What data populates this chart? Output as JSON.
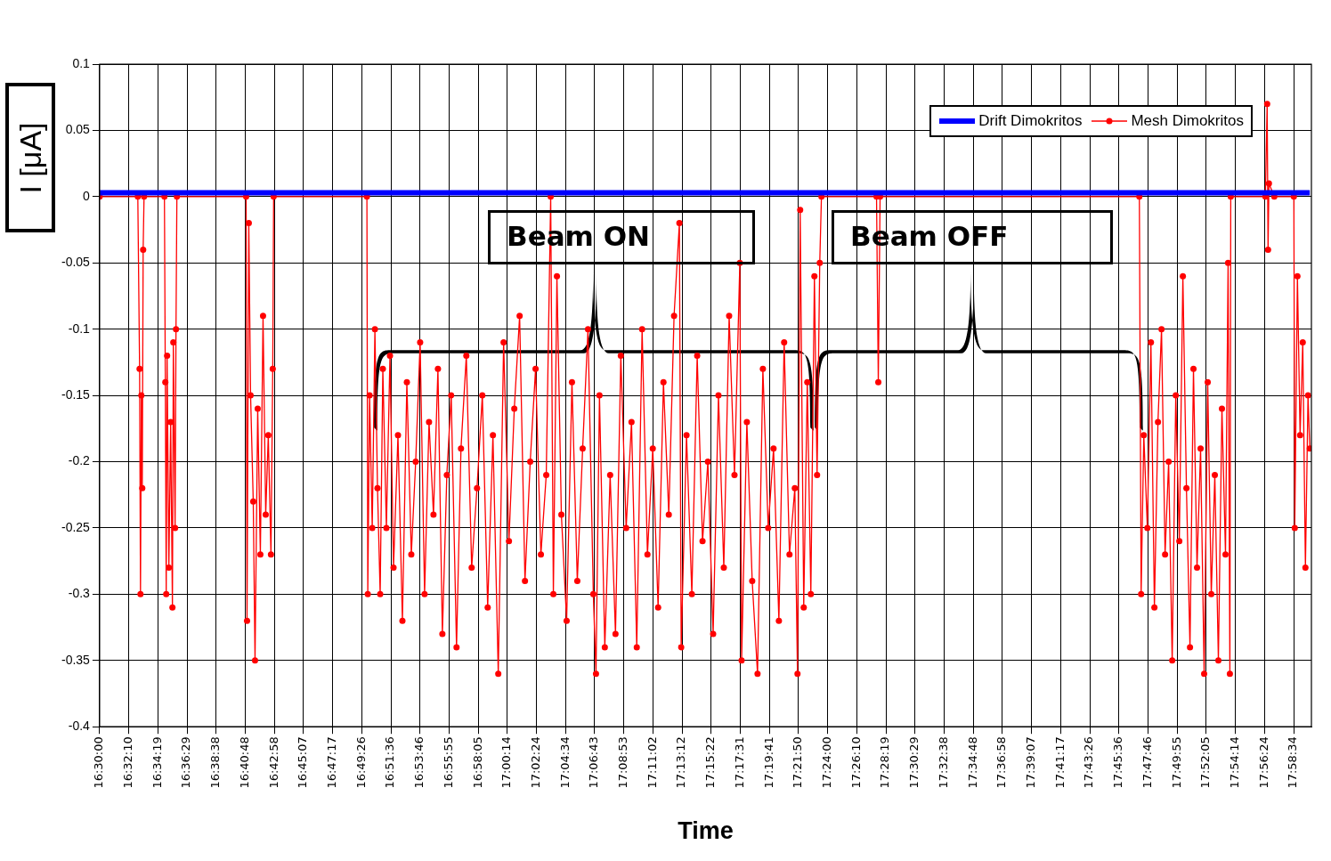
{
  "chart_data": {
    "type": "line",
    "xlabel": "Time",
    "ylabel": "I [μA]",
    "xlim": [
      16.5,
      17.998
    ],
    "ylim": [
      -0.4,
      0.1
    ],
    "yticks": [
      0.1,
      0.05,
      0,
      -0.05,
      -0.1,
      -0.15,
      -0.2,
      -0.25,
      -0.3,
      -0.35,
      -0.4
    ],
    "xticks": [
      {
        "value": 16.5,
        "label": "16:30:00"
      },
      {
        "value": 16.536,
        "label": "16:32:10"
      },
      {
        "value": 16.572,
        "label": "16:34:19"
      },
      {
        "value": 16.608,
        "label": "16:36:29"
      },
      {
        "value": 16.644,
        "label": "16:38:38"
      },
      {
        "value": 16.68,
        "label": "16:40:48"
      },
      {
        "value": 16.716,
        "label": "16:42:58"
      },
      {
        "value": 16.752,
        "label": "16:45:07"
      },
      {
        "value": 16.788,
        "label": "16:47:17"
      },
      {
        "value": 16.824,
        "label": "16:49:26"
      },
      {
        "value": 16.86,
        "label": "16:51:36"
      },
      {
        "value": 16.896,
        "label": "16:53:46"
      },
      {
        "value": 16.932,
        "label": "16:55:55"
      },
      {
        "value": 16.968,
        "label": "16:58:05"
      },
      {
        "value": 17.004,
        "label": "17:00:14"
      },
      {
        "value": 17.04,
        "label": "17:02:24"
      },
      {
        "value": 17.076,
        "label": "17:04:34"
      },
      {
        "value": 17.112,
        "label": "17:06:43"
      },
      {
        "value": 17.148,
        "label": "17:08:53"
      },
      {
        "value": 17.184,
        "label": "17:11:02"
      },
      {
        "value": 17.22,
        "label": "17:13:12"
      },
      {
        "value": 17.256,
        "label": "17:15:22"
      },
      {
        "value": 17.292,
        "label": "17:17:31"
      },
      {
        "value": 17.328,
        "label": "17:19:41"
      },
      {
        "value": 17.364,
        "label": "17:21:50"
      },
      {
        "value": 17.4,
        "label": "17:24:00"
      },
      {
        "value": 17.436,
        "label": "17:26:10"
      },
      {
        "value": 17.472,
        "label": "17:28:19"
      },
      {
        "value": 17.508,
        "label": "17:30:29"
      },
      {
        "value": 17.544,
        "label": "17:32:38"
      },
      {
        "value": 17.58,
        "label": "17:34:48"
      },
      {
        "value": 17.616,
        "label": "17:36:58"
      },
      {
        "value": 17.652,
        "label": "17:39:07"
      },
      {
        "value": 17.688,
        "label": "17:41:17"
      },
      {
        "value": 17.724,
        "label": "17:43:26"
      },
      {
        "value": 17.76,
        "label": "17:45:36"
      },
      {
        "value": 17.796,
        "label": "17:47:46"
      },
      {
        "value": 17.832,
        "label": "17:49:55"
      },
      {
        "value": 17.868,
        "label": "17:52:05"
      },
      {
        "value": 17.904,
        "label": "17:54:14"
      },
      {
        "value": 17.94,
        "label": "17:56:24"
      },
      {
        "value": 17.976,
        "label": "17:58:34"
      }
    ],
    "grid": true,
    "legend": "top right",
    "line_style": "solid",
    "annotations": [
      "Beam ON",
      "Beam OFF"
    ],
    "series": [
      {
        "name": "Drift Dimokritos",
        "color": "#0000ff",
        "marker": "none",
        "x": [
          16.5,
          16.65,
          16.8,
          16.95,
          17.1,
          17.25,
          17.4,
          17.55,
          17.7,
          17.85,
          17.996
        ],
        "values": [
          0.003,
          0.003,
          0.003,
          0.003,
          0.003,
          0.003,
          0.003,
          0.003,
          0.003,
          0.003,
          0.003
        ]
      },
      {
        "name": "Mesh Dimokritos",
        "color": "#ff0000",
        "marker": "circle",
        "x": [
          16.5,
          16.5472,
          16.5494,
          16.5505,
          16.5516,
          16.5527,
          16.5538,
          16.5549,
          16.5801,
          16.5812,
          16.5823,
          16.5834,
          16.5856,
          16.5878,
          16.59,
          16.5911,
          16.5933,
          16.5944,
          16.5955,
          16.6811,
          16.6822,
          16.6844,
          16.6866,
          16.6899,
          16.6921,
          16.6954,
          16.6987,
          16.702,
          16.7053,
          16.7085,
          16.7118,
          16.714,
          16.7151,
          16.8304,
          16.8315,
          16.8337,
          16.837,
          16.8403,
          16.8435,
          16.8468,
          16.8501,
          16.8545,
          16.8589,
          16.8633,
          16.8688,
          16.8743,
          16.8798,
          16.8853,
          16.8907,
          16.8962,
          16.9017,
          16.9072,
          16.9127,
          16.9182,
          16.9237,
          16.9292,
          16.9346,
          16.9412,
          16.9467,
          16.9533,
          16.9599,
          16.9665,
          16.9731,
          16.9797,
          16.9862,
          16.9928,
          16.9994,
          17.006,
          17.0126,
          17.0192,
          17.0258,
          17.0323,
          17.0389,
          17.0455,
          17.0521,
          17.0576,
          17.0609,
          17.0653,
          17.0708,
          17.0773,
          17.0839,
          17.0905,
          17.0971,
          17.1037,
          17.1103,
          17.1136,
          17.1179,
          17.1245,
          17.1311,
          17.1377,
          17.1443,
          17.1509,
          17.1575,
          17.164,
          17.1706,
          17.1772,
          17.1838,
          17.1904,
          17.197,
          17.2036,
          17.2101,
          17.2167,
          17.2189,
          17.2255,
          17.2321,
          17.2387,
          17.2453,
          17.2519,
          17.2584,
          17.265,
          17.2716,
          17.2782,
          17.2848,
          17.2914,
          17.2936,
          17.3001,
          17.3067,
          17.3133,
          17.3199,
          17.3265,
          17.3331,
          17.3397,
          17.3462,
          17.3528,
          17.3594,
          17.3627,
          17.366,
          17.3704,
          17.3748,
          17.3792,
          17.3836,
          17.3869,
          17.3902,
          17.3923,
          17.4604,
          17.4626,
          17.4648,
          17.7853,
          17.7875,
          17.7908,
          17.7952,
          17.7996,
          17.8039,
          17.8083,
          17.8127,
          17.8171,
          17.8215,
          17.8259,
          17.8303,
          17.8347,
          17.8391,
          17.8435,
          17.8479,
          17.8522,
          17.8566,
          17.861,
          17.8654,
          17.8698,
          17.8742,
          17.8786,
          17.883,
          17.8874,
          17.8918,
          17.895,
          17.8972,
          17.8983,
          17.9411,
          17.9433,
          17.9444,
          17.9455,
          17.9521,
          17.9763,
          17.9774,
          17.9807,
          17.984,
          17.9873,
          17.9906,
          17.9938,
          17.996
        ],
        "values": [
          0,
          0,
          -0.13,
          -0.3,
          -0.15,
          -0.22,
          -0.04,
          0,
          0,
          -0.14,
          -0.3,
          -0.12,
          -0.28,
          -0.17,
          -0.31,
          -0.11,
          -0.25,
          -0.1,
          0,
          0,
          -0.32,
          -0.02,
          -0.15,
          -0.23,
          -0.35,
          -0.16,
          -0.27,
          -0.09,
          -0.24,
          -0.18,
          -0.27,
          -0.13,
          0,
          0,
          -0.3,
          -0.15,
          -0.25,
          -0.1,
          -0.22,
          -0.3,
          -0.13,
          -0.25,
          -0.12,
          -0.28,
          -0.18,
          -0.32,
          -0.14,
          -0.27,
          -0.2,
          -0.11,
          -0.3,
          -0.17,
          -0.24,
          -0.13,
          -0.33,
          -0.21,
          -0.15,
          -0.34,
          -0.19,
          -0.12,
          -0.28,
          -0.22,
          -0.15,
          -0.31,
          -0.18,
          -0.36,
          -0.11,
          -0.26,
          -0.16,
          -0.09,
          -0.29,
          -0.2,
          -0.13,
          -0.27,
          -0.21,
          0,
          -0.3,
          -0.06,
          -0.24,
          -0.32,
          -0.14,
          -0.29,
          -0.19,
          -0.1,
          -0.3,
          -0.36,
          -0.15,
          -0.34,
          -0.21,
          -0.33,
          -0.12,
          -0.25,
          -0.17,
          -0.34,
          -0.1,
          -0.27,
          -0.19,
          -0.31,
          -0.14,
          -0.24,
          -0.09,
          -0.02,
          -0.34,
          -0.18,
          -0.3,
          -0.12,
          -0.26,
          -0.2,
          -0.33,
          -0.15,
          -0.28,
          -0.09,
          -0.21,
          -0.05,
          -0.35,
          -0.17,
          -0.29,
          -0.36,
          -0.13,
          -0.25,
          -0.19,
          -0.32,
          -0.11,
          -0.27,
          -0.22,
          -0.36,
          -0.01,
          -0.31,
          -0.14,
          -0.3,
          -0.06,
          -0.21,
          -0.05,
          0,
          0,
          -0.14,
          0,
          0,
          -0.3,
          -0.18,
          -0.25,
          -0.11,
          -0.31,
          -0.17,
          -0.1,
          -0.27,
          -0.2,
          -0.35,
          -0.15,
          -0.26,
          -0.06,
          -0.22,
          -0.34,
          -0.13,
          -0.28,
          -0.19,
          -0.36,
          -0.14,
          -0.3,
          -0.21,
          -0.35,
          -0.16,
          -0.27,
          -0.05,
          -0.36,
          0,
          0,
          0.07,
          -0.04,
          0.01,
          0,
          0,
          -0.25,
          -0.06,
          -0.18,
          -0.11,
          -0.28,
          -0.15,
          -0.19
        ]
      }
    ]
  }
}
